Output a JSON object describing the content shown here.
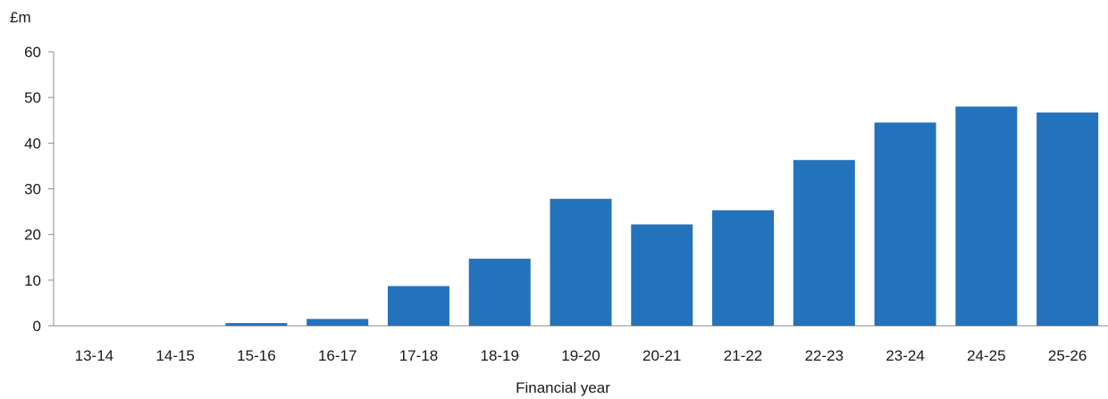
{
  "chart_data": {
    "type": "bar",
    "ylabel": "£m",
    "xlabel": "Financial year",
    "categories": [
      "13-14",
      "14-15",
      "15-16",
      "16-17",
      "17-18",
      "18-19",
      "19-20",
      "20-21",
      "21-22",
      "22-23",
      "23-24",
      "24-25",
      "25-26"
    ],
    "values": [
      0,
      0,
      0.6,
      1.5,
      8.7,
      14.7,
      27.8,
      22.2,
      25.3,
      36.3,
      44.5,
      48.0,
      46.7
    ],
    "yticks": [
      "0",
      "10",
      "20",
      "30",
      "40",
      "50",
      "60"
    ],
    "ylim": [
      0,
      60
    ],
    "bar_color": "#2372bc",
    "axis_color": "#8c8c8c",
    "grid": false,
    "legend": "none"
  }
}
